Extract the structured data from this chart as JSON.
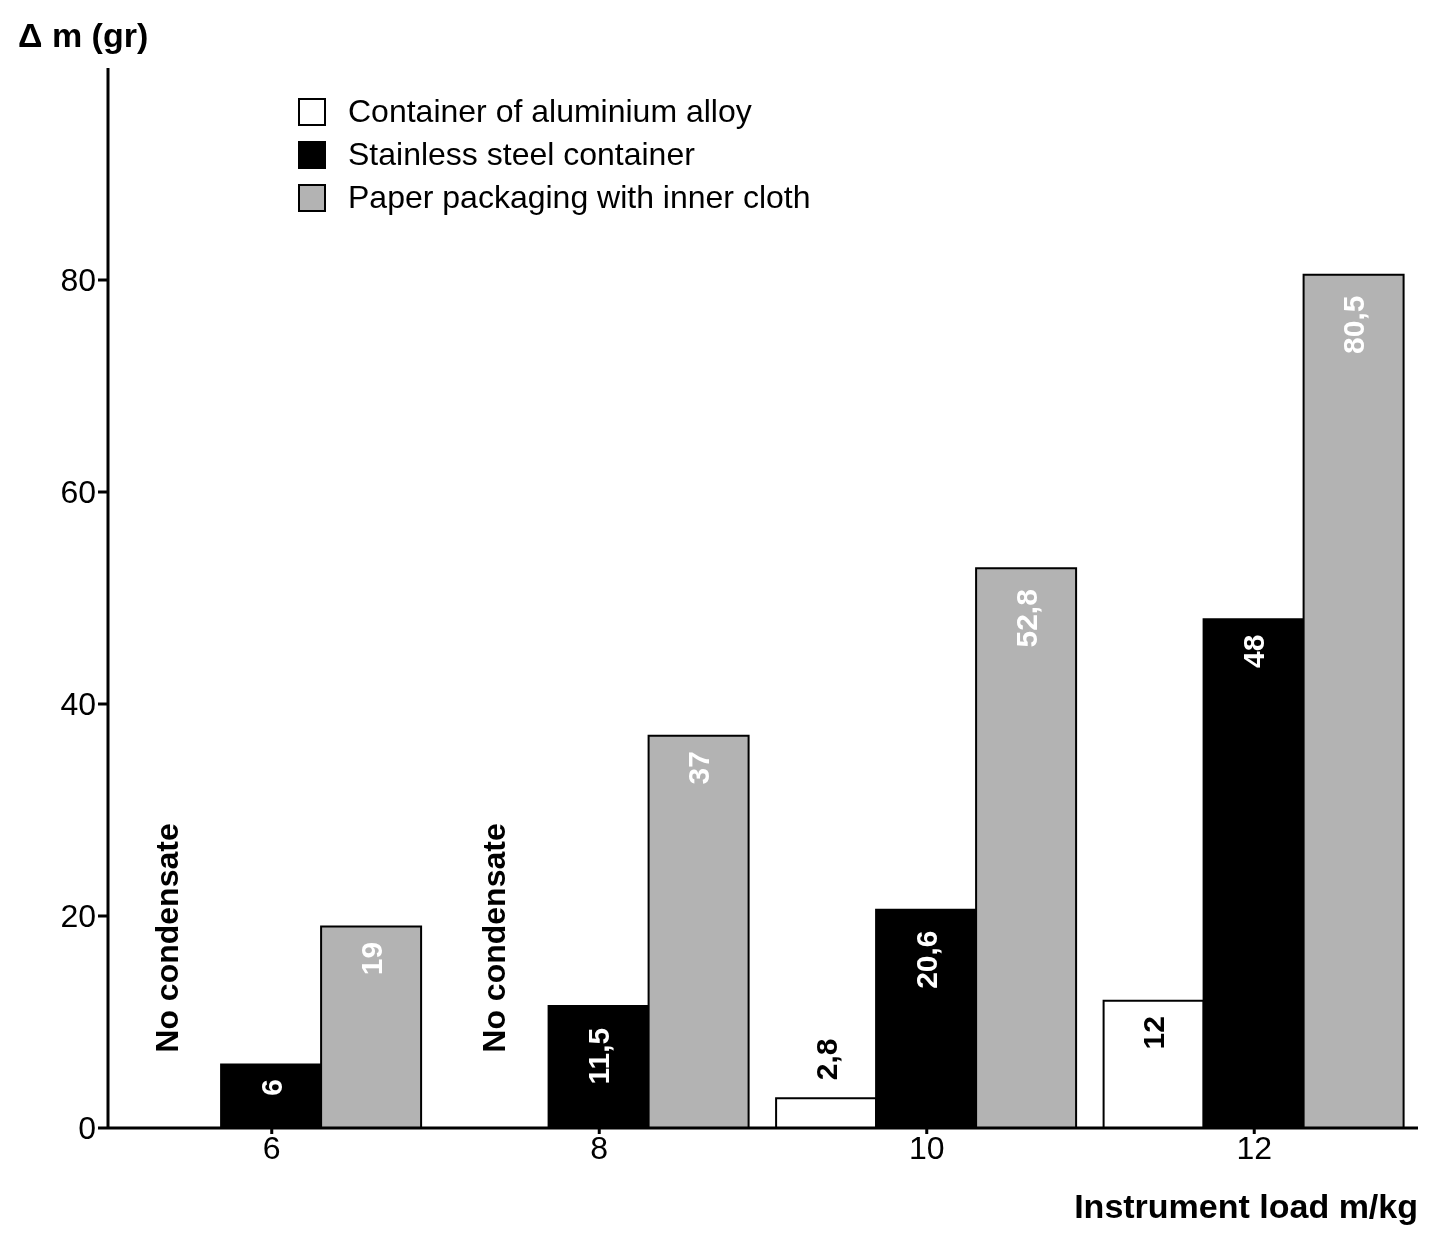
{
  "chart_data": {
    "type": "bar",
    "ylabel": "Δ m (gr)",
    "xlabel": "Instrument load   m/kg",
    "categories": [
      "6",
      "8",
      "10",
      "12"
    ],
    "series": [
      {
        "name": "Container of aluminium alloy",
        "color": "#ffffff",
        "values": [
          null,
          null,
          2.8,
          12
        ],
        "value_labels": [
          null,
          null,
          "2,8",
          "12"
        ]
      },
      {
        "name": "Stainless steel container",
        "color": "#000000",
        "values": [
          6,
          11.5,
          20.6,
          48
        ],
        "value_labels": [
          "6",
          "11,5",
          "20,6",
          "48"
        ]
      },
      {
        "name": "Paper packaging with  inner cloth",
        "color": "#b3b3b3",
        "values": [
          19,
          37,
          52.8,
          80.5
        ],
        "value_labels": [
          "19",
          "37",
          "52,8",
          "80,5"
        ]
      }
    ],
    "ylim": [
      0,
      100
    ],
    "yticks": [
      0,
      20,
      40,
      60,
      80
    ],
    "grid": false,
    "legend": "top left",
    "annotations": [
      "No condensate",
      "No condensate"
    ]
  }
}
